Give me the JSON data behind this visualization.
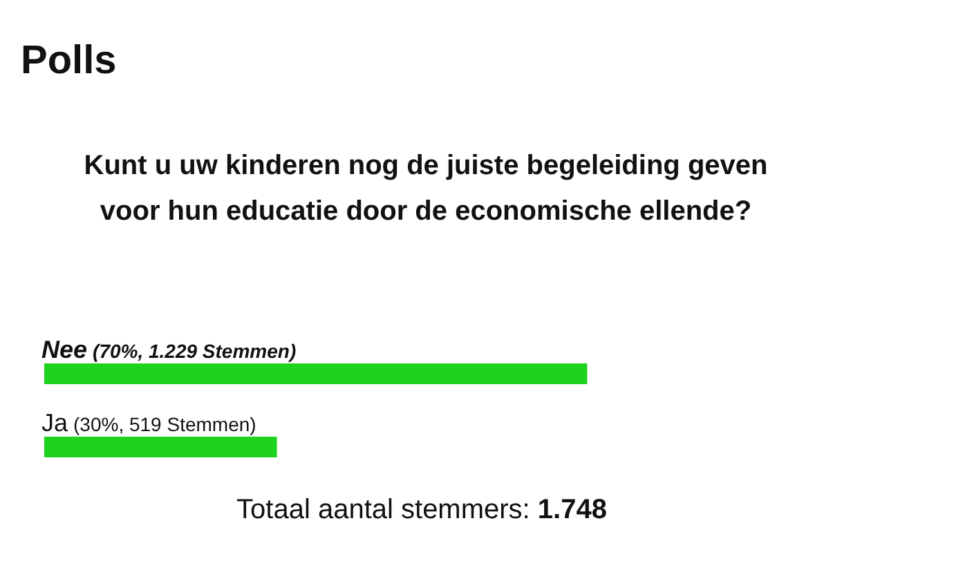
{
  "chart_data": {
    "type": "bar",
    "orientation": "horizontal",
    "title": "Polls",
    "subtitle": "Kunt u uw kinderen nog de juiste begeleiding geven voor hun educatie door de economische ellende?",
    "categories": [
      "Nee",
      "Ja"
    ],
    "values": [
      70,
      30
    ],
    "value_labels": [
      "(70%, 1.229 Stemmen)",
      "(30%, 519 Stemmen)"
    ],
    "color": "#1ed31e",
    "annotations": [
      "Totaal aantal stemmers: 1.748"
    ]
  }
}
